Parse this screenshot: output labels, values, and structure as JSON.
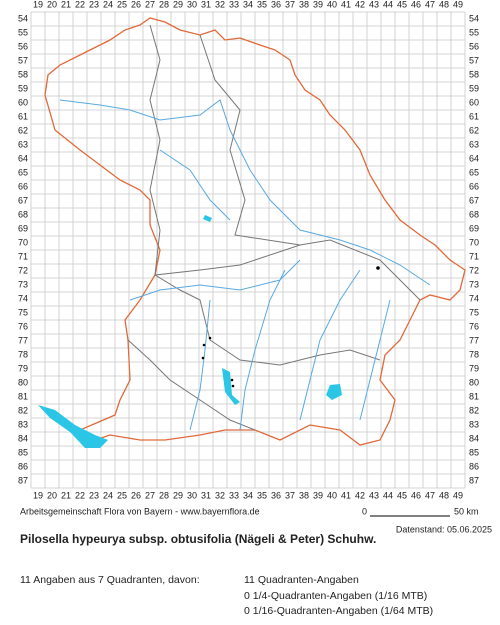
{
  "map": {
    "columns": [
      19,
      20,
      21,
      22,
      23,
      24,
      25,
      26,
      27,
      28,
      29,
      30,
      31,
      32,
      33,
      34,
      35,
      36,
      37,
      38,
      39,
      40,
      41,
      42,
      43,
      44,
      45,
      46,
      47,
      48,
      49
    ],
    "rows": [
      54,
      55,
      56,
      57,
      58,
      59,
      60,
      61,
      62,
      63,
      64,
      65,
      66,
      67,
      68,
      69,
      70,
      71,
      72,
      73,
      74,
      75,
      76,
      77,
      78,
      79,
      80,
      81,
      82,
      83,
      84,
      85,
      86,
      87
    ],
    "credit": "Arbeitsgemeinschaft Flora von Bayern - www.bayernflora.de",
    "scale": {
      "start": "0",
      "end": "50 km"
    },
    "date": "Datenstand: 05.06.2025",
    "title": "Pilosella hypeurya subsp. obtusifolia (Nägeli & Peter) Schuhw.",
    "summary": "11 Angaben aus 7 Quadranten, davon:",
    "details": [
      "11 Quadranten-Angaben",
      "0 1/4-Quadranten-Angaben (1/16 MTB)",
      "0 1/16-Quadranten-Angaben (1/64 MTB)"
    ]
  }
}
